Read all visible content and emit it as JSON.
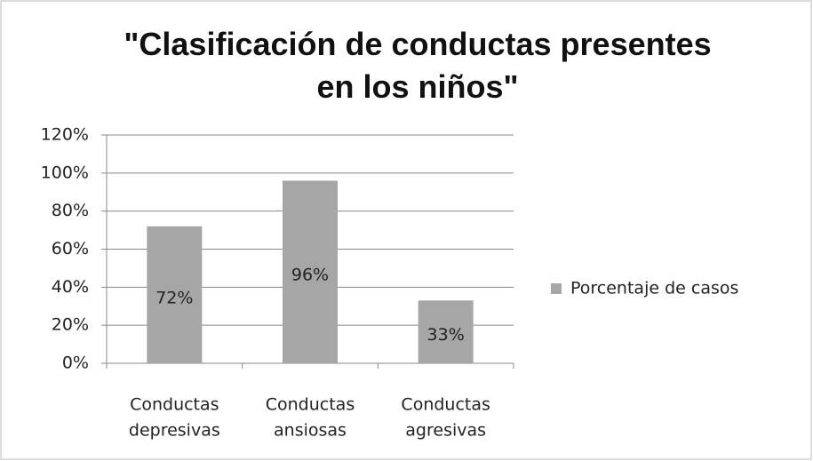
{
  "chart_data": {
    "type": "bar",
    "title": "\"Clasificación de conductas presentes en los niños\"",
    "categories": [
      "Conductas depresivas",
      "Conductas ansiosas",
      "Conductas agresivas"
    ],
    "series": [
      {
        "name": "Porcentaje de casos",
        "color": "#a6a6a6",
        "values": [
          72,
          96,
          33
        ],
        "value_labels": [
          "72%",
          "96%",
          "33%"
        ]
      }
    ],
    "ylim": [
      0,
      120
    ],
    "yticks": [
      {
        "value": 0,
        "label": "0%"
      },
      {
        "value": 20,
        "label": "20%"
      },
      {
        "value": 40,
        "label": "40%"
      },
      {
        "value": 60,
        "label": "60%"
      },
      {
        "value": 80,
        "label": "80%"
      },
      {
        "value": 100,
        "label": "100%"
      },
      {
        "value": 120,
        "label": "120%"
      }
    ],
    "grid": true,
    "legend": "right"
  }
}
